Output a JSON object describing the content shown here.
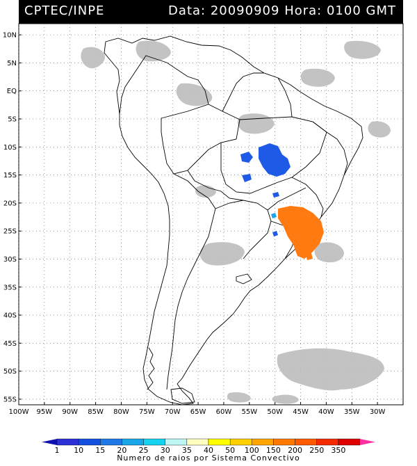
{
  "header": {
    "agency": "CPTEC/INPE",
    "date_label": "Data:",
    "date_value": "20090909",
    "time_label": "Hora:",
    "time_value": "0100",
    "tz": "GMT"
  },
  "map": {
    "lon_range": [
      -100,
      -25
    ],
    "lat_range": [
      -56,
      12
    ],
    "lat_ticks": [
      {
        "value": 10,
        "label": "10N"
      },
      {
        "value": 5,
        "label": "5N"
      },
      {
        "value": 0,
        "label": "EQ"
      },
      {
        "value": -5,
        "label": "5S"
      },
      {
        "value": -10,
        "label": "10S"
      },
      {
        "value": -15,
        "label": "15S"
      },
      {
        "value": -20,
        "label": "20S"
      },
      {
        "value": -25,
        "label": "25S"
      },
      {
        "value": -30,
        "label": "30S"
      },
      {
        "value": -35,
        "label": "35S"
      },
      {
        "value": -40,
        "label": "40S"
      },
      {
        "value": -45,
        "label": "45S"
      },
      {
        "value": -50,
        "label": "50S"
      },
      {
        "value": -55,
        "label": "55S"
      }
    ],
    "lon_ticks": [
      {
        "value": -100,
        "label": "100W"
      },
      {
        "value": -95,
        "label": "95W"
      },
      {
        "value": -90,
        "label": "90W"
      },
      {
        "value": -85,
        "label": "85W"
      },
      {
        "value": -80,
        "label": "80W"
      },
      {
        "value": -75,
        "label": "75W"
      },
      {
        "value": -70,
        "label": "70W"
      },
      {
        "value": -65,
        "label": "65W"
      },
      {
        "value": -60,
        "label": "60W"
      },
      {
        "value": -55,
        "label": "55W"
      },
      {
        "value": -50,
        "label": "50W"
      },
      {
        "value": -45,
        "label": "45W"
      },
      {
        "value": -40,
        "label": "40W"
      },
      {
        "value": -35,
        "label": "35W"
      },
      {
        "value": -30,
        "label": "30W"
      }
    ],
    "grid": true,
    "cloud_color": "#bdbdbd",
    "coast_color": "#000000"
  },
  "legend": {
    "caption": "Numero de raios por Sistema Convectivo",
    "classes": [
      {
        "label": "1",
        "color": "#2a2fd8"
      },
      {
        "label": "10",
        "color": "#1450e0"
      },
      {
        "label": "15",
        "color": "#1e78e8"
      },
      {
        "label": "20",
        "color": "#18a6e8"
      },
      {
        "label": "25",
        "color": "#14d2f0"
      },
      {
        "label": "30",
        "color": "#bdf5f5"
      },
      {
        "label": "35",
        "color": "#ffffc0"
      },
      {
        "label": "40",
        "color": "#ffff00"
      },
      {
        "label": "50",
        "color": "#ffd000"
      },
      {
        "label": "100",
        "color": "#ffa400"
      },
      {
        "label": "150",
        "color": "#ff7800"
      },
      {
        "label": "200",
        "color": "#ff5a00"
      },
      {
        "label": "250",
        "color": "#f52a00"
      },
      {
        "label": "350",
        "color": "#e00000"
      }
    ],
    "end_colors": {
      "left": "#1010b0",
      "right": "#ff30a0"
    }
  },
  "systems": [
    {
      "name": "central-brazil",
      "color": "#1e5ae6",
      "lon": -50.5,
      "lat": -10.5
    },
    {
      "name": "southeast-brazil",
      "color": "#ff7a10",
      "lon": -44.5,
      "lat": -24.8
    }
  ]
}
